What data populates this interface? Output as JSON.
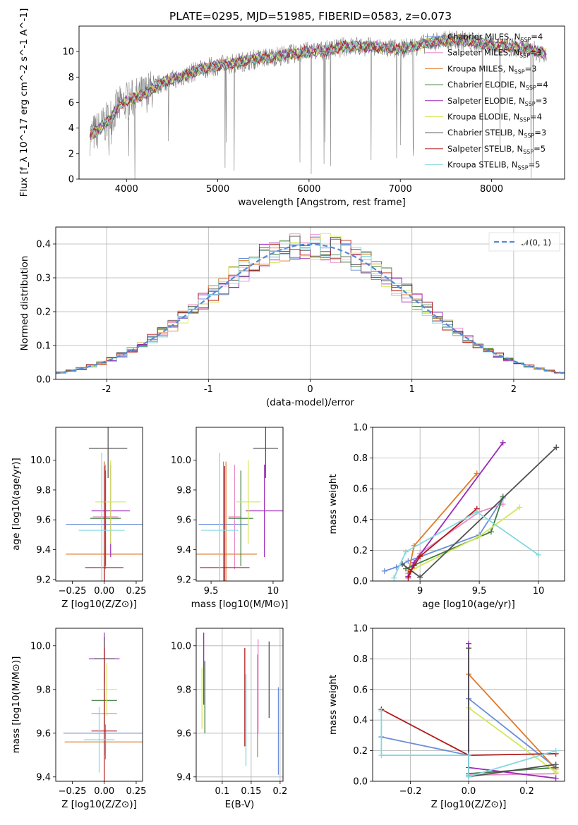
{
  "title": "PLATE=0295, MJD=51985, FIBERID=0583, z=0.073",
  "colors": {
    "Chabrier MILES": "#6b8fd8",
    "Salpeter MILES": "#e88cc8",
    "Kroupa MILES": "#e07a28",
    "Chabrier ELODIE": "#3e7d3e",
    "Salpeter ELODIE": "#9a2ab8",
    "Kroupa ELODIE": "#d2e85a",
    "Chabrier STELIB": "#505050",
    "Salpeter STELIB": "#b01818",
    "Kroupa STELIB": "#82d8e0"
  },
  "chart_data": [
    {
      "id": "spectrum",
      "type": "line",
      "xlabel": "wavelength [Angstrom, rest frame]",
      "ylabel": "Flux [f_λ 10^-17 erg cm^-2 s^-1 A^-1]",
      "xlim": [
        3480,
        8800
      ],
      "ylim": [
        0,
        12
      ],
      "xticks": [
        4000,
        5000,
        6000,
        7000,
        8000
      ],
      "yticks": [
        0,
        2,
        4,
        6,
        8,
        10
      ],
      "grid": false,
      "legend": "right",
      "data_color": "#7f7f7f",
      "continuum": [
        [
          3600,
          3.4
        ],
        [
          3700,
          3.9
        ],
        [
          3800,
          4.6
        ],
        [
          3900,
          5.6
        ],
        [
          4000,
          6.1
        ],
        [
          4200,
          6.7
        ],
        [
          4400,
          7.6
        ],
        [
          4600,
          8.0
        ],
        [
          4800,
          8.6
        ],
        [
          5000,
          8.9
        ],
        [
          5200,
          9.1
        ],
        [
          5400,
          9.4
        ],
        [
          5600,
          9.6
        ],
        [
          5800,
          9.8
        ],
        [
          6000,
          10.0
        ],
        [
          6200,
          10.1
        ],
        [
          6400,
          10.4
        ],
        [
          6600,
          10.4
        ],
        [
          6800,
          10.3
        ],
        [
          7000,
          10.2
        ],
        [
          7200,
          10.5
        ],
        [
          7400,
          10.8
        ],
        [
          7600,
          10.9
        ],
        [
          7800,
          10.8
        ],
        [
          8000,
          10.5
        ],
        [
          8200,
          10.4
        ],
        [
          8400,
          10.2
        ],
        [
          8600,
          9.8
        ]
      ],
      "models_start": [
        3600,
        7430
      ],
      "models_end": [
        7430,
        8600
      ],
      "series": [
        {
          "key": "Chabrier MILES",
          "label_prefix": "Chabrier MILES, N",
          "n_ssp": "4"
        },
        {
          "key": "Salpeter MILES",
          "label_prefix": "Salpeter MILES, N",
          "n_ssp": "3"
        },
        {
          "key": "Kroupa MILES",
          "label_prefix": "Kroupa MILES, N",
          "n_ssp": "3"
        },
        {
          "key": "Chabrier ELODIE",
          "label_prefix": "Chabrier ELODIE, N",
          "n_ssp": "4"
        },
        {
          "key": "Salpeter ELODIE",
          "label_prefix": "Salpeter ELODIE, N",
          "n_ssp": "3"
        },
        {
          "key": "Kroupa ELODIE",
          "label_prefix": "Kroupa ELODIE, N",
          "n_ssp": "4"
        },
        {
          "key": "Chabrier STELIB",
          "label_prefix": "Chabrier STELIB, N",
          "n_ssp": "3"
        },
        {
          "key": "Salpeter STELIB",
          "label_prefix": "Salpeter STELIB, N",
          "n_ssp": "5"
        },
        {
          "key": "Kroupa STELIB",
          "label_prefix": "Kroupa STELIB, N",
          "n_ssp": "5"
        }
      ],
      "ssp_subscript": "SSP"
    },
    {
      "id": "residuals",
      "type": "line",
      "xlabel": "(data-model)/error",
      "ylabel": "Normed distribution",
      "xlim": [
        -2.5,
        2.5
      ],
      "ylim": [
        0,
        0.45
      ],
      "xticks": [
        -2,
        -1,
        0,
        1,
        2
      ],
      "yticks": [
        0.0,
        0.1,
        0.2,
        0.3,
        0.4
      ],
      "grid": true,
      "legend": "top-right",
      "reference": {
        "label": "𝒩(0, 1)",
        "color": "#5588d8",
        "mean": 0,
        "sigma": 1
      },
      "bin_width": 0.1,
      "histogram_note": "histograms per series follow the N(0,1) profile"
    },
    {
      "id": "age_vs_Z",
      "type": "scatter",
      "xlabel": "Z [log10(Z/Z⊙)]",
      "ylabel": "age [log10(age/yr)]",
      "xlim": [
        -0.38,
        0.3
      ],
      "ylim": [
        9.19,
        10.22
      ],
      "xticks": [
        -0.25,
        0.0,
        0.25
      ],
      "xticklabels": [
        "−0.25",
        "0.00",
        "0.25"
      ],
      "yticks": [
        9.2,
        9.4,
        9.6,
        9.8,
        10.0
      ],
      "grid": false,
      "points": [
        {
          "key": "Chabrier MILES",
          "x": 0.0,
          "y": 9.57,
          "xerr": 0.3,
          "yerr": 0.42
        },
        {
          "key": "Salpeter MILES",
          "x": 0.01,
          "y": 9.62,
          "xerr": 0.1,
          "yerr": 0.35
        },
        {
          "key": "Kroupa MILES",
          "x": 0.0,
          "y": 9.37,
          "xerr": 0.3,
          "yerr": 0.62
        },
        {
          "key": "Chabrier ELODIE",
          "x": 0.01,
          "y": 9.61,
          "xerr": 0.12,
          "yerr": 0.32
        },
        {
          "key": "Salpeter ELODIE",
          "x": 0.05,
          "y": 9.66,
          "xerr": 0.15,
          "yerr": 0.31
        },
        {
          "key": "Kroupa ELODIE",
          "x": 0.05,
          "y": 9.72,
          "xerr": 0.12,
          "yerr": 0.28
        },
        {
          "key": "Chabrier STELIB",
          "x": 0.03,
          "y": 10.08,
          "xerr": 0.15,
          "yerr": 0.2
        },
        {
          "key": "Salpeter STELIB",
          "x": 0.0,
          "y": 9.28,
          "xerr": 0.15,
          "yerr": 0.68
        },
        {
          "key": "Kroupa STELIB",
          "x": -0.02,
          "y": 9.53,
          "xerr": 0.18,
          "yerr": 0.52
        }
      ]
    },
    {
      "id": "age_vs_mass",
      "type": "scatter",
      "xlabel": "mass [log10(M/M⊙)]",
      "ylabel": "",
      "xlim": [
        9.38,
        10.08
      ],
      "ylim": [
        9.19,
        10.22
      ],
      "xticks": [
        9.5,
        10.0
      ],
      "yticks": [
        9.2,
        9.4,
        9.6,
        9.8,
        10.0
      ],
      "grid": false,
      "points": [
        {
          "key": "Chabrier MILES",
          "x": 9.6,
          "y": 9.57,
          "xerr": 0.2,
          "yerr": 0.42
        },
        {
          "key": "Salpeter MILES",
          "x": 9.69,
          "y": 9.62,
          "xerr": 0.05,
          "yerr": 0.35
        },
        {
          "key": "Kroupa MILES",
          "x": 9.62,
          "y": 9.37,
          "xerr": 0.25,
          "yerr": 0.62
        },
        {
          "key": "Chabrier ELODIE",
          "x": 9.74,
          "y": 9.61,
          "xerr": 0.1,
          "yerr": 0.32
        },
        {
          "key": "Salpeter ELODIE",
          "x": 9.93,
          "y": 9.66,
          "xerr": 0.15,
          "yerr": 0.31
        },
        {
          "key": "Kroupa ELODIE",
          "x": 9.8,
          "y": 9.72,
          "xerr": 0.1,
          "yerr": 0.28
        },
        {
          "key": "Chabrier STELIB",
          "x": 9.94,
          "y": 10.08,
          "xerr": 0.1,
          "yerr": 0.2
        },
        {
          "key": "Salpeter STELIB",
          "x": 9.61,
          "y": 9.28,
          "xerr": 0.2,
          "yerr": 0.68
        },
        {
          "key": "Kroupa STELIB",
          "x": 9.57,
          "y": 9.53,
          "xerr": 0.15,
          "yerr": 0.52
        }
      ]
    },
    {
      "id": "mass_weight_vs_age",
      "type": "line",
      "xlabel": "age [log10(age/yr)]",
      "ylabel": "mass weight",
      "xlim": [
        8.6,
        10.22
      ],
      "ylim": [
        0,
        1.0
      ],
      "xticks": [
        9.0,
        9.5,
        10.0
      ],
      "yticks": [
        0.0,
        0.2,
        0.4,
        0.6,
        0.8,
        1.0
      ],
      "grid": true,
      "series": [
        {
          "key": "Chabrier MILES",
          "points": [
            [
              8.7,
              0.065
            ],
            [
              8.8,
              0.09
            ],
            [
              8.9,
              0.13
            ],
            [
              9.5,
              0.3
            ],
            [
              9.7,
              0.54
            ]
          ]
        },
        {
          "key": "Salpeter MILES",
          "points": [
            [
              8.9,
              0.07
            ],
            [
              9.0,
              0.18
            ],
            [
              9.5,
              0.45
            ],
            [
              9.7,
              0.5
            ]
          ]
        },
        {
          "key": "Kroupa MILES",
          "points": [
            [
              8.9,
              0.05
            ],
            [
              8.95,
              0.23
            ],
            [
              9.48,
              0.7
            ]
          ]
        },
        {
          "key": "Chabrier ELODIE",
          "points": [
            [
              8.88,
              0.08
            ],
            [
              9.6,
              0.32
            ],
            [
              9.7,
              0.55
            ]
          ]
        },
        {
          "key": "Salpeter ELODIE",
          "points": [
            [
              8.9,
              0.03
            ],
            [
              8.95,
              0.12
            ],
            [
              9.7,
              0.9
            ]
          ]
        },
        {
          "key": "Kroupa ELODIE",
          "points": [
            [
              8.95,
              0.08
            ],
            [
              9.5,
              0.29
            ],
            [
              9.84,
              0.48
            ]
          ]
        },
        {
          "key": "Chabrier STELIB",
          "points": [
            [
              8.85,
              0.11
            ],
            [
              9.0,
              0.025
            ],
            [
              10.15,
              0.87
            ]
          ]
        },
        {
          "key": "Salpeter STELIB",
          "points": [
            [
              8.9,
              0.02
            ],
            [
              8.92,
              0.06
            ],
            [
              8.95,
              0.1
            ],
            [
              9.0,
              0.16
            ],
            [
              9.48,
              0.47
            ]
          ]
        },
        {
          "key": "Kroupa STELIB",
          "points": [
            [
              8.78,
              0.02
            ],
            [
              8.88,
              0.19
            ],
            [
              9.48,
              0.45
            ],
            [
              10.0,
              0.17
            ]
          ]
        }
      ]
    },
    {
      "id": "mass_vs_Z",
      "type": "scatter",
      "xlabel": "Z [log10(Z/Z⊙)]",
      "ylabel": "mass [log10(M/M⊙)]",
      "xlim": [
        -0.38,
        0.3
      ],
      "ylim": [
        9.38,
        10.08
      ],
      "xticks": [
        -0.25,
        0.0,
        0.25
      ],
      "xticklabels": [
        "−0.25",
        "0.00",
        "0.25"
      ],
      "yticks": [
        9.4,
        9.6,
        9.8,
        10.0
      ],
      "grid": false,
      "points": [
        {
          "key": "Chabrier MILES",
          "x": 0.0,
          "y": 9.6,
          "xerr": 0.32,
          "yerr": 0.1
        },
        {
          "key": "Salpeter MILES",
          "x": 0.0,
          "y": 9.69,
          "xerr": 0.1,
          "yerr": 0.1
        },
        {
          "key": "Kroupa MILES",
          "x": 0.01,
          "y": 9.56,
          "xerr": 0.32,
          "yerr": 0.08
        },
        {
          "key": "Chabrier ELODIE",
          "x": 0.0,
          "y": 9.75,
          "xerr": 0.1,
          "yerr": 0.12
        },
        {
          "key": "Salpeter ELODIE",
          "x": 0.0,
          "y": 9.94,
          "xerr": 0.12,
          "yerr": 0.12
        },
        {
          "key": "Kroupa ELODIE",
          "x": 0.02,
          "y": 9.8,
          "xerr": 0.08,
          "yerr": 0.12
        },
        {
          "key": "Chabrier STELIB",
          "x": 0.0,
          "y": 9.94,
          "xerr": 0.08,
          "yerr": 0.1
        },
        {
          "key": "Salpeter STELIB",
          "x": 0.0,
          "y": 9.61,
          "xerr": 0.1,
          "yerr": 0.38
        },
        {
          "key": "Kroupa STELIB",
          "x": -0.04,
          "y": 9.57,
          "xerr": 0.12,
          "yerr": 0.15
        }
      ]
    },
    {
      "id": "EBV",
      "type": "scatter",
      "xlabel": "E(B-V)",
      "ylabel": "",
      "xlim": [
        0.055,
        0.205
      ],
      "ylim": [
        9.38,
        10.08
      ],
      "xticks": [
        0.1,
        0.15,
        0.2
      ],
      "xticklabels": [
        "0.1",
        "0.15",
        "0.2"
      ],
      "yticks": [
        9.4,
        9.6,
        9.8,
        10.0
      ],
      "grid": true,
      "segments": [
        {
          "key": "Salpeter ELODIE",
          "x": 0.068,
          "y0": 9.73,
          "y1": 10.06
        },
        {
          "key": "Chabrier ELODIE",
          "x": 0.07,
          "y0": 9.6,
          "y1": 9.93
        },
        {
          "key": "Kroupa ELODIE",
          "x": 0.065,
          "y0": 9.62,
          "y1": 9.9
        },
        {
          "key": "Salpeter STELIB",
          "x": 0.139,
          "y0": 9.54,
          "y1": 9.99
        },
        {
          "key": "Kroupa STELIB",
          "x": 0.141,
          "y0": 9.45,
          "y1": 9.87
        },
        {
          "key": "Kroupa MILES",
          "x": 0.161,
          "y0": 9.49,
          "y1": 9.96
        },
        {
          "key": "Salpeter MILES",
          "x": 0.162,
          "y0": 9.6,
          "y1": 10.03
        },
        {
          "key": "Chabrier STELIB",
          "x": 0.181,
          "y0": 9.67,
          "y1": 10.02
        },
        {
          "key": "Chabrier MILES",
          "x": 0.197,
          "y0": 9.41,
          "y1": 9.81
        }
      ]
    },
    {
      "id": "mass_weight_vs_Z",
      "type": "line",
      "xlabel": "Z [log10(Z/Z⊙)]",
      "ylabel": "mass weight",
      "xlim": [
        -0.33,
        0.33
      ],
      "ylim": [
        0,
        1.0
      ],
      "xticks": [
        -0.2,
        0.0,
        0.2
      ],
      "xticklabels": [
        "−0.2",
        "0.0",
        "0.2"
      ],
      "yticks": [
        0.0,
        0.2,
        0.4,
        0.6,
        0.8,
        1.0
      ],
      "grid": true,
      "series": [
        {
          "key": "Chabrier MILES",
          "points": [
            [
              -0.3,
              0.29
            ],
            [
              0.0,
              0.17
            ],
            [
              0.0,
              0.54
            ],
            [
              0.3,
              0.09
            ]
          ]
        },
        {
          "key": "Salpeter MILES",
          "points": [
            [
              0.0,
              0.04
            ],
            [
              0.3,
              0.05
            ]
          ]
        },
        {
          "key": "Kroupa MILES",
          "points": [
            [
              0.0,
              0.7
            ],
            [
              0.3,
              0.08
            ]
          ]
        },
        {
          "key": "Chabrier ELODIE",
          "points": [
            [
              0.0,
              0.05
            ],
            [
              0.3,
              0.09
            ]
          ]
        },
        {
          "key": "Salpeter ELODIE",
          "points": [
            [
              0.0,
              0.9
            ],
            [
              0.0,
              0.09
            ],
            [
              0.3,
              0.02
            ]
          ]
        },
        {
          "key": "Kroupa ELODIE",
          "points": [
            [
              0.0,
              0.48
            ],
            [
              0.3,
              0.06
            ]
          ]
        },
        {
          "key": "Chabrier STELIB",
          "points": [
            [
              0.0,
              0.87
            ],
            [
              0.0,
              0.03
            ],
            [
              0.3,
              0.11
            ]
          ]
        },
        {
          "key": "Salpeter STELIB",
          "points": [
            [
              -0.3,
              0.47
            ],
            [
              0.0,
              0.17
            ],
            [
              0.3,
              0.18
            ]
          ]
        },
        {
          "key": "Kroupa STELIB",
          "points": [
            [
              -0.3,
              0.46
            ],
            [
              -0.3,
              0.17
            ],
            [
              0.0,
              0.17
            ],
            [
              0.0,
              0.03
            ],
            [
              0.3,
              0.2
            ]
          ]
        }
      ]
    }
  ]
}
